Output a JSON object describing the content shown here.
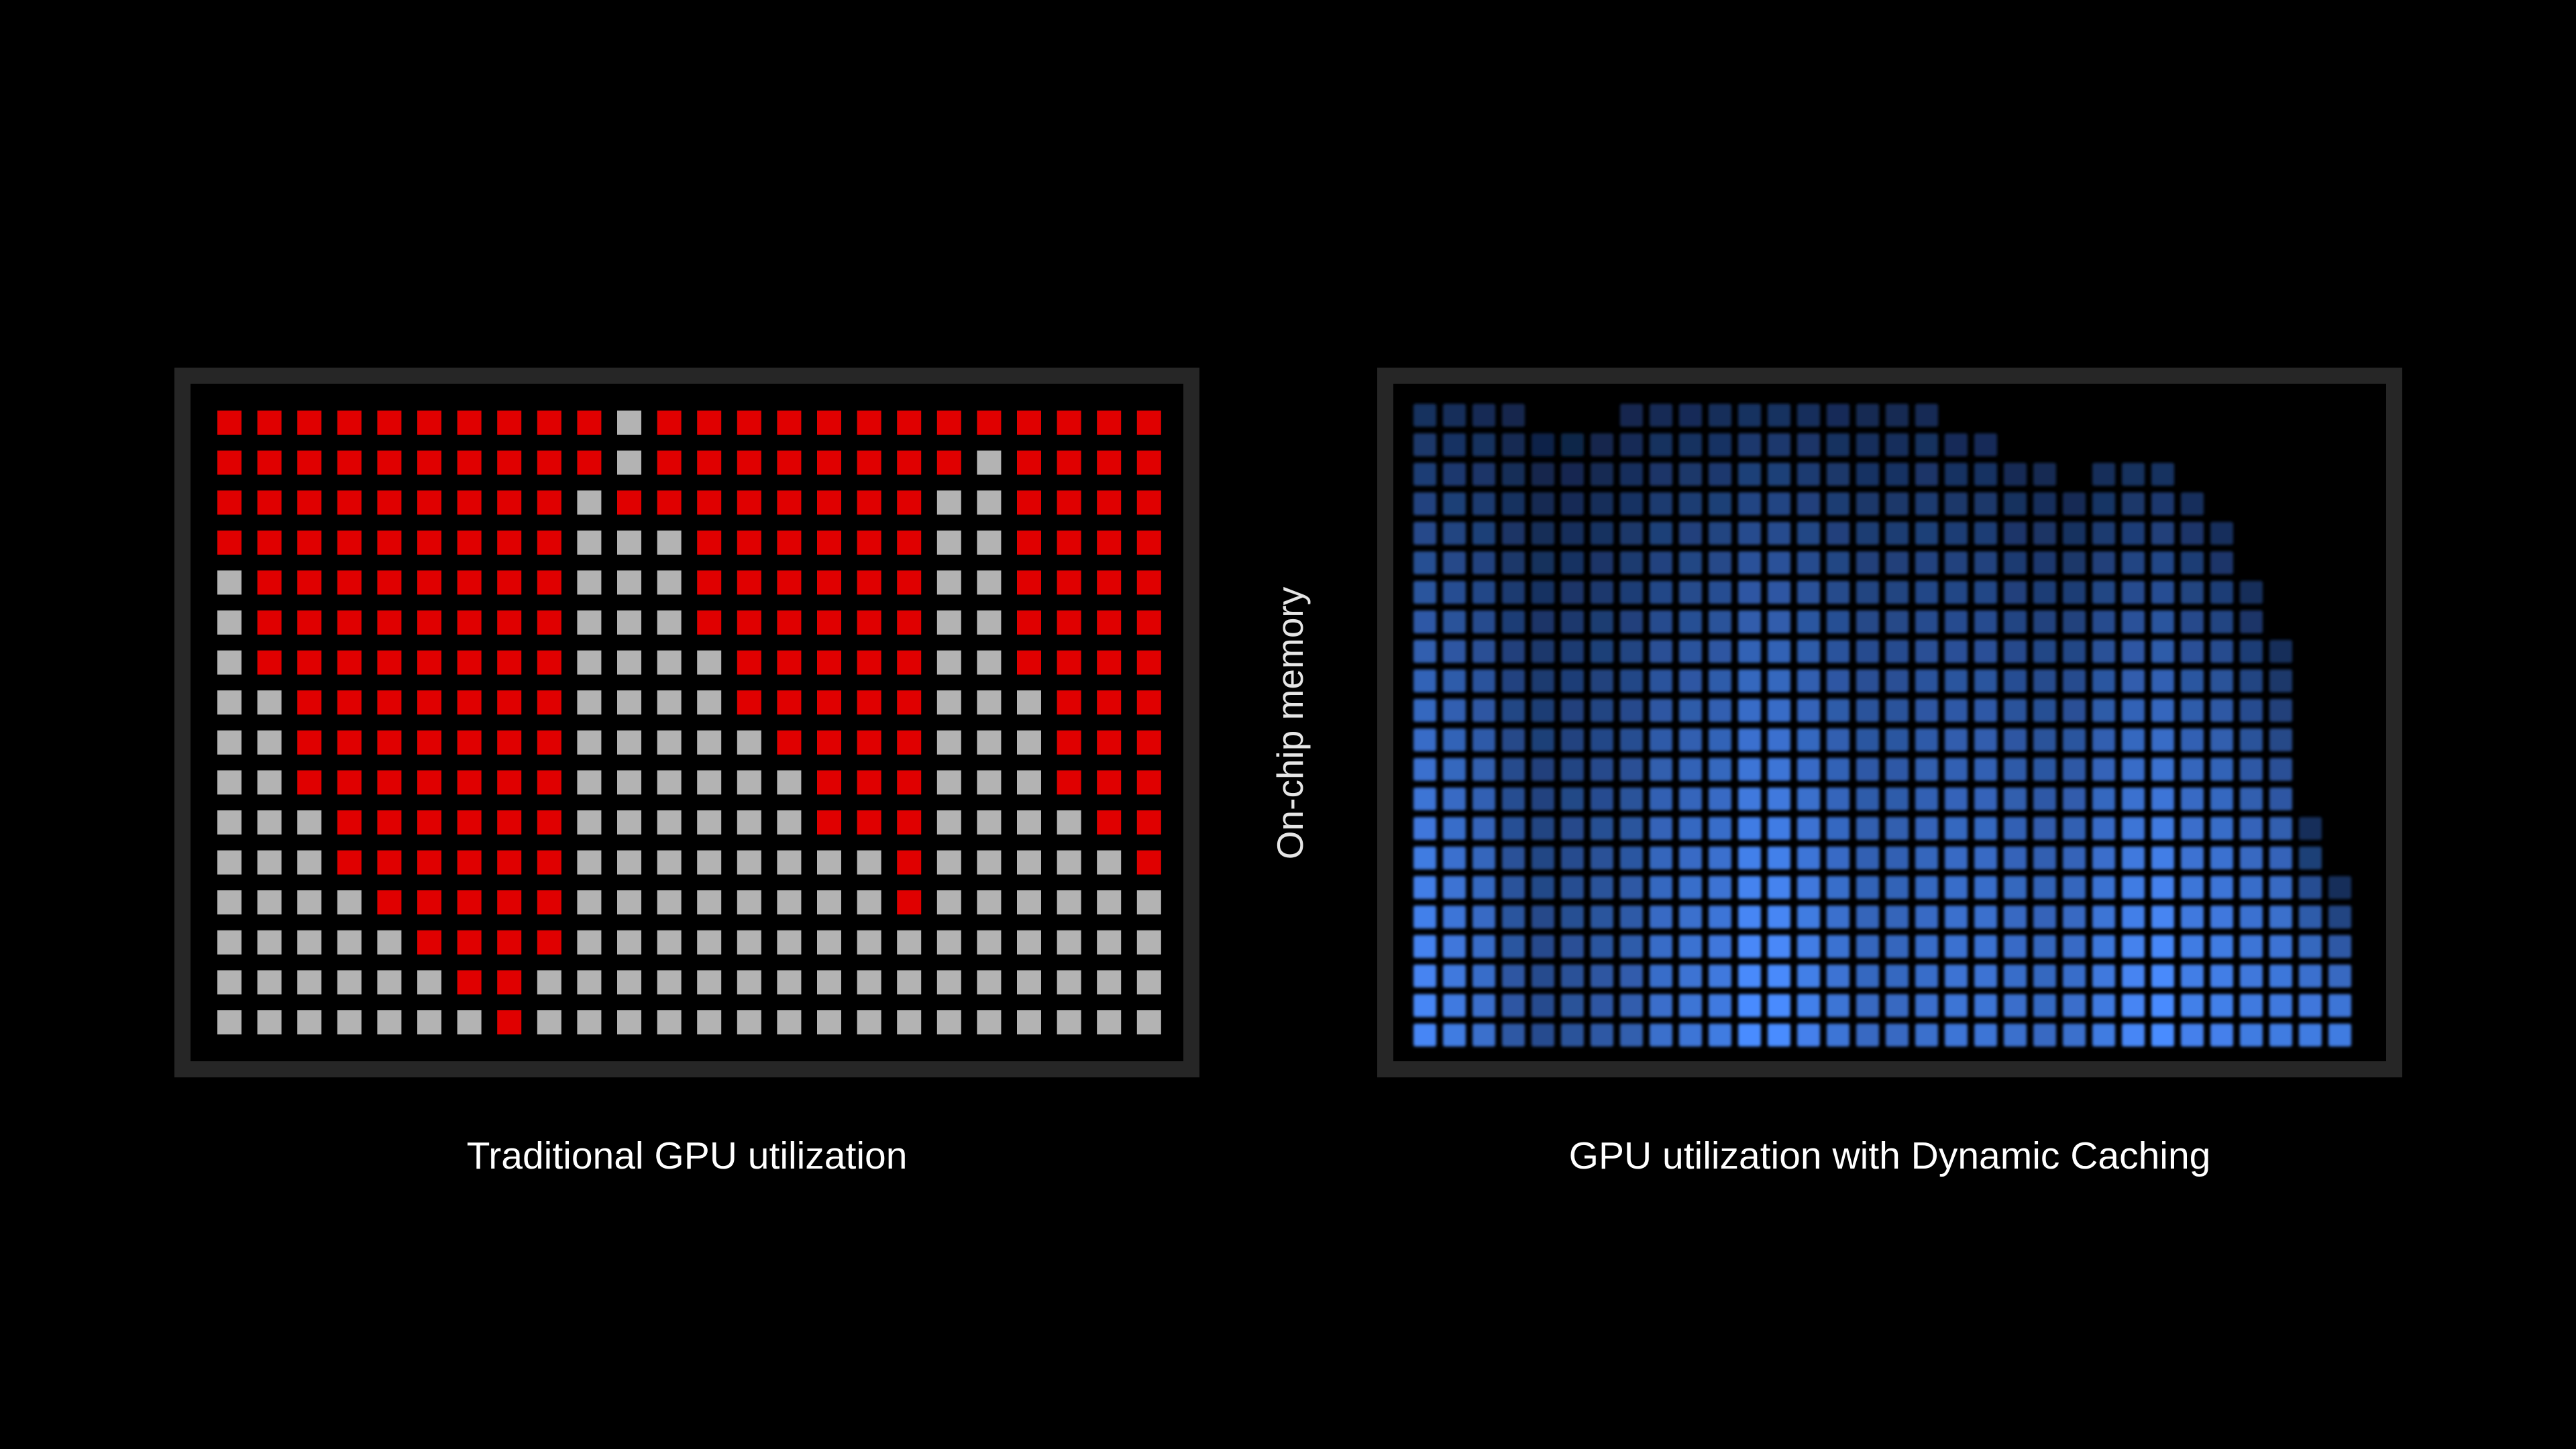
{
  "labels": {
    "left_caption": "Traditional GPU utilization",
    "right_caption": "GPU utilization with Dynamic Caching",
    "side_label": "On-chip memory"
  },
  "colors": {
    "background": "#000000",
    "panel_border": "#262626",
    "used_red": "#e00000",
    "unused_gray": "#b3b3b3",
    "blue_bright": "#4a8cff",
    "blue_dim": "#0a1a36"
  },
  "traditional_grid": {
    "columns": 24,
    "rows": 16,
    "legend": "1 = used (red), 0 = unused (gray)",
    "cells": [
      "111111111101111111111111",
      "111111111101111111101111",
      "111111111011111111001111",
      "111111111000111111001111",
      "011111111000111111001111",
      "011111111000111111001111",
      "011111111000011111001111",
      "001111111000011111000111",
      "001111111000001111000111",
      "001111111000000111000111",
      "000111111000000111000011",
      "000111111000000001000001",
      "000011111000000001000000",
      "000001111000000000000000",
      "000000110000000000000000",
      "000000010000000000000000"
    ]
  },
  "dynamic_grid": {
    "columns": 32,
    "rows": 22,
    "legend": "column heights (cells filled from bottom)",
    "column_heights": [
      22,
      22,
      22,
      22,
      21,
      21,
      21,
      22,
      22,
      22,
      22,
      22,
      22,
      22,
      22,
      22,
      22,
      22,
      21,
      21,
      20,
      20,
      19,
      20,
      20,
      20,
      19,
      18,
      16,
      14,
      8,
      6
    ],
    "brightness_profile": [
      0.95,
      0.85,
      0.75,
      0.55,
      0.45,
      0.5,
      0.55,
      0.6,
      0.75,
      0.8,
      0.85,
      1.0,
      1.0,
      0.9,
      0.8,
      0.7,
      0.7,
      0.75,
      0.8,
      0.8,
      0.75,
      0.7,
      0.75,
      0.85,
      0.95,
      1.0,
      0.9,
      0.9,
      0.85,
      0.85,
      0.85,
      0.85
    ]
  }
}
